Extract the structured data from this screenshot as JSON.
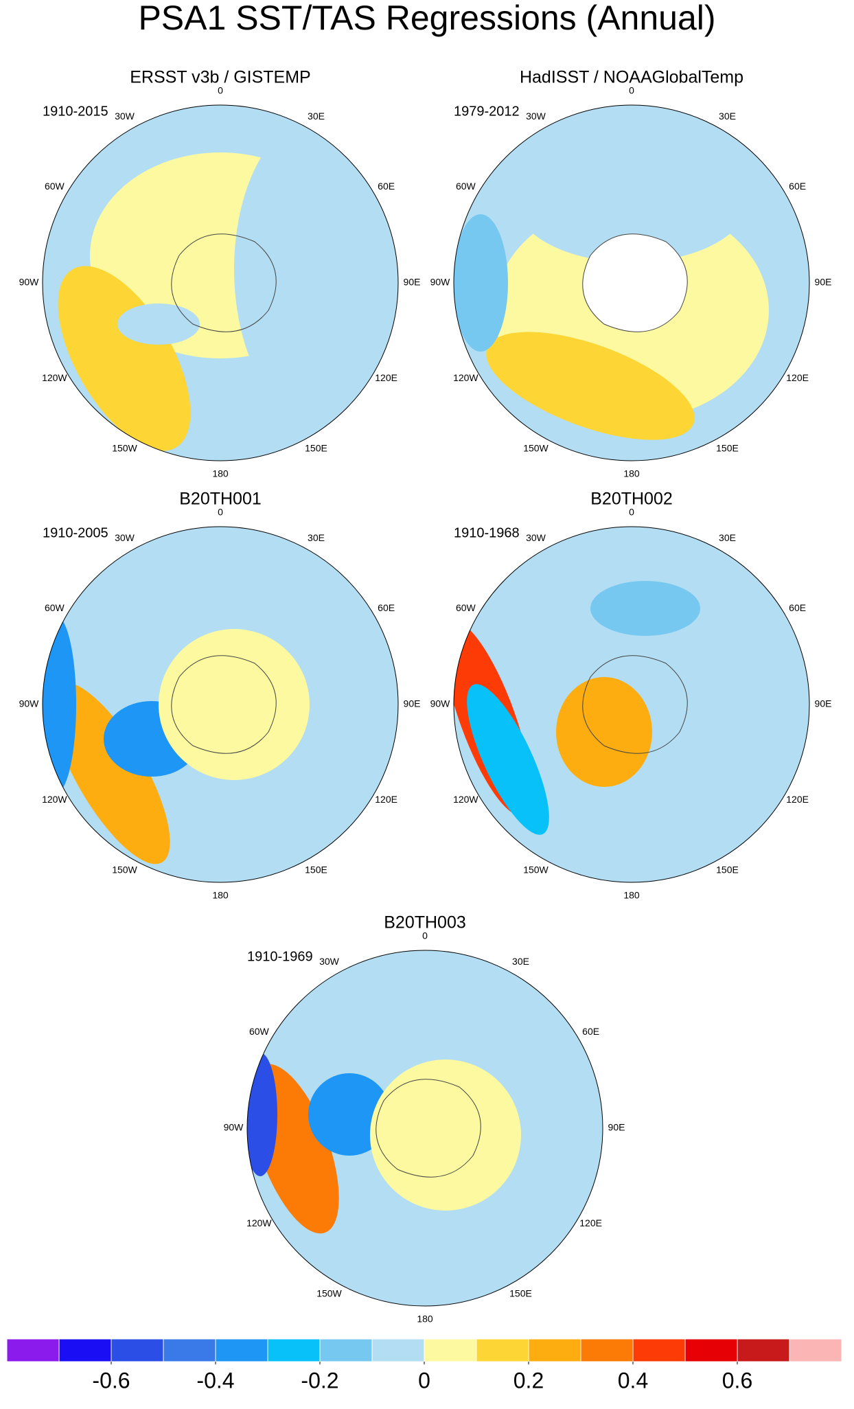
{
  "title": "PSA1 SST/TAS Regressions (Annual)",
  "panels": [
    {
      "title": "ERSST v3b / GISTEMP",
      "period": "1910-2015"
    },
    {
      "title": "HadISST / NOAAGlobalTemp",
      "period": "1979-2012"
    },
    {
      "title": "B20TH001",
      "period": "1910-2005"
    },
    {
      "title": "B20TH002",
      "period": "1910-1968"
    },
    {
      "title": "B20TH003",
      "period": "1910-1969"
    }
  ],
  "lon_labels": [
    "0",
    "30E",
    "60E",
    "90E",
    "120E",
    "150E",
    "180",
    "150W",
    "120W",
    "90W",
    "60W",
    "30W"
  ],
  "colorbar": {
    "colors": [
      "#8a1bec",
      "#1a0ef5",
      "#2a4ee6",
      "#3a7ae8",
      "#1e96f5",
      "#07c1f8",
      "#77c8f0",
      "#b3ddf2",
      "#fdf9a0",
      "#fdd535",
      "#fdad0f",
      "#fb7b06",
      "#fd3b07",
      "#e60006",
      "#c81a1a",
      "#fbb5b5"
    ],
    "xlim": [
      -0.8,
      0.8
    ],
    "ticks": [
      -0.6,
      -0.4,
      -0.2,
      0,
      0.2,
      0.4,
      0.6
    ]
  }
}
